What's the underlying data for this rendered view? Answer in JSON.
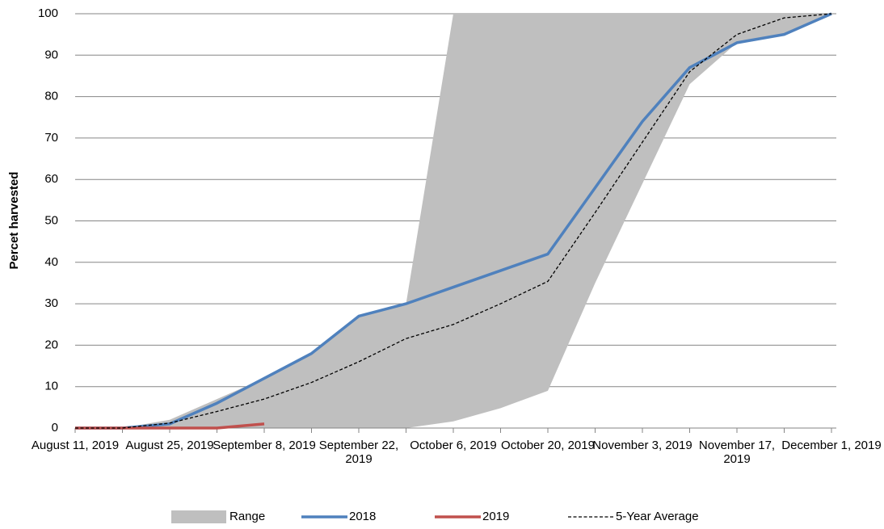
{
  "chart_data": {
    "type": "line",
    "y_label": "Percet harvested",
    "categories": [
      "August 11, 2019",
      null,
      "August 25, 2019",
      null,
      "September 8, 2019",
      null,
      "September 22, 2019",
      null,
      "October 6, 2019",
      null,
      "October 20, 2019",
      null,
      "November 3, 2019",
      null,
      "November 17, 2019",
      null,
      "December 1, 2019"
    ],
    "range": {
      "name": "Range",
      "color": "#bfbfbf",
      "low": [
        0,
        0,
        0,
        0,
        0,
        0,
        0,
        0,
        1.6,
        4.8,
        9,
        35,
        59,
        83,
        93,
        95,
        100
      ],
      "high": [
        0,
        0,
        2,
        7,
        12,
        18,
        27,
        30,
        100,
        100,
        100,
        100,
        100,
        100,
        100,
        100,
        100
      ]
    },
    "series": [
      {
        "name": "2018",
        "color": "#4f81bd",
        "values": [
          0,
          0,
          1,
          6,
          12,
          18,
          27,
          30,
          34,
          38,
          42,
          58,
          74,
          87,
          93,
          95,
          100
        ]
      },
      {
        "name": "2019",
        "color": "#c0504d",
        "values": [
          0,
          0,
          0,
          0,
          1,
          null,
          null,
          null,
          null,
          null,
          null,
          null,
          null,
          null,
          null,
          null,
          null
        ]
      },
      {
        "name": "5-Year Average",
        "color": "#000000",
        "dashed": true,
        "values": [
          0,
          0,
          1.2,
          4,
          7,
          11,
          16,
          21.6,
          25,
          30,
          35.4,
          52,
          69,
          86,
          95,
          99,
          100
        ]
      }
    ],
    "ylim": [
      0,
      100
    ],
    "yticks": [
      0,
      10,
      20,
      30,
      40,
      50,
      60,
      70,
      80,
      90,
      100
    ],
    "grid": true
  }
}
